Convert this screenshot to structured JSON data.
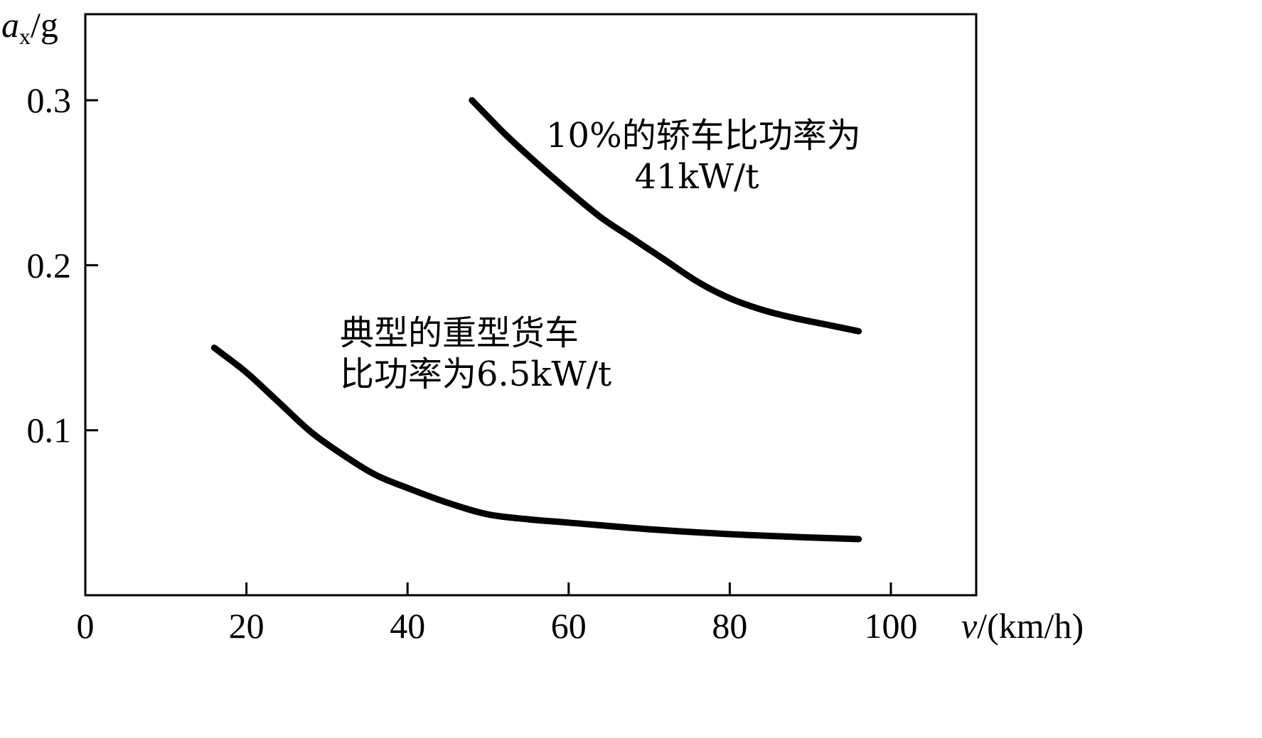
{
  "chart_data": {
    "type": "line",
    "title": "",
    "xlabel": "v/(km/h)",
    "xlabel_italic_symbol": "v",
    "xlabel_unit": "/(km/h)",
    "ylabel": "ax/g",
    "ylabel_symbol": "a",
    "ylabel_subscript": "x",
    "ylabel_unit": "/g",
    "xlim": [
      0,
      110
    ],
    "ylim": [
      0,
      0.35
    ],
    "x_ticks": [
      0,
      20,
      40,
      60,
      80,
      100
    ],
    "x_tick_labels": [
      "0",
      "20",
      "40",
      "60",
      "80",
      "100"
    ],
    "y_ticks": [
      0.1,
      0.2,
      0.3
    ],
    "y_tick_labels": [
      "0.1",
      "0.2",
      "0.3"
    ],
    "grid": false,
    "series": [
      {
        "x": [
          48,
          52,
          56,
          60,
          64,
          68,
          72,
          76,
          80,
          84,
          88,
          92,
          96
        ],
        "y": [
          0.3,
          0.28,
          0.262,
          0.245,
          0.229,
          0.216,
          0.203,
          0.19,
          0.18,
          0.173,
          0.168,
          0.164,
          0.16
        ]
      },
      {
        "x": [
          16,
          20,
          24,
          28,
          32,
          36,
          40,
          45,
          50,
          55,
          60,
          70,
          80,
          90,
          96
        ],
        "y": [
          0.15,
          0.135,
          0.117,
          0.099,
          0.085,
          0.073,
          0.065,
          0.056,
          0.049,
          0.046,
          0.044,
          0.04,
          0.037,
          0.035,
          0.034
        ]
      }
    ],
    "annotations": [
      {
        "lines": [
          "10%的轿车比功率为",
          "41kW/t"
        ]
      },
      {
        "lines": [
          "典型的重型货车",
          "比功率为6.5kW/t"
        ]
      }
    ]
  }
}
